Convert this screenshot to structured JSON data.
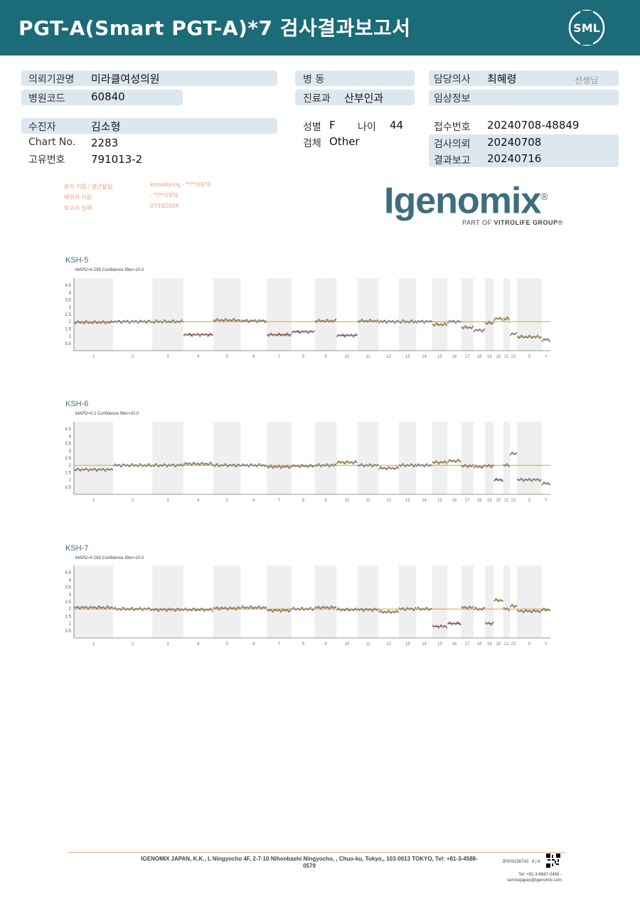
{
  "header": {
    "title": "PGT-A(Smart  PGT-A)*7 검사결과보고서",
    "logo_text": "SML",
    "bg_color": "#1b6b78"
  },
  "info": {
    "institution_label": "의뢰기관명",
    "institution": "미라클여성의원",
    "hospital_code_label": "병원코드",
    "hospital_code": "60840",
    "ward_label": "병  동",
    "ward": "",
    "dept_label": "진료과",
    "dept": "산부인과",
    "doctor_label": "담당의사",
    "doctor": "최혜령",
    "doctor_suffix": "선생님",
    "clinical_label": "임상정보",
    "clinical": "",
    "patient_label": "수진자",
    "patient": "김소형",
    "chart_no_label": "Chart No.",
    "chart_no": "2283",
    "unique_no_label": "고유번호",
    "unique_no": "791013-2",
    "sex_label": "성별",
    "sex": "F",
    "age_label": "나이",
    "age": "44",
    "specimen_label": "검체",
    "specimen": "Other",
    "receipt_label": "접수번호",
    "receipt": "20240708-48849",
    "request_label": "검사의뢰",
    "request": "20240708",
    "report_label": "결과보고",
    "report": "20240716"
  },
  "patient_block": {
    "line1_label": "환자 이름 / 생년월일:",
    "line1_value": "kimsohyung - **/**/1979",
    "line2_label": "배우자 이름:",
    "line2_value": " - **/**/1976",
    "line3_label": "보고서 날짜:",
    "line3_value": "07/16/2024"
  },
  "brand": {
    "name": "Igenomix",
    "reg": "®",
    "sub_prefix": "PART OF ",
    "sub_bold": "VITROLIFE GROUP",
    "sub_suffix": "®"
  },
  "chart_data": [
    {
      "type": "scatter",
      "title": "KSH-5",
      "subtitle": "MAPD=0.199 Confidence filter=10.0",
      "yticks": [
        "4.5",
        "4",
        "3.5",
        "3",
        "2.5",
        "2",
        "1.5",
        "1",
        "0.5"
      ],
      "ylim": [
        0,
        5
      ],
      "reference_line": 2,
      "categories": [
        "1",
        "2",
        "3",
        "4",
        "5",
        "6",
        "7",
        "8",
        "9",
        "10",
        "11",
        "12",
        "13",
        "14",
        "15",
        "16",
        "17",
        "18",
        "19",
        "20",
        "21",
        "22",
        "X",
        "Y"
      ],
      "copy_number_segments": [
        1.95,
        2.0,
        2.0,
        1.1,
        2.1,
        2.05,
        1.1,
        1.3,
        2.05,
        1.05,
        2.05,
        2.0,
        2.0,
        2.0,
        1.8,
        2.0,
        1.6,
        1.4,
        1.9,
        2.2,
        2.2,
        1.15,
        0.95,
        0.75
      ],
      "called_segments": [
        "4",
        "7",
        "8",
        "10"
      ]
    },
    {
      "type": "scatter",
      "title": "KSH-6",
      "subtitle": "MAPD=0.2 Confidence filter=10.0",
      "yticks": [
        "4.5",
        "4",
        "3.5",
        "3",
        "2.5",
        "2",
        "1.5",
        "1",
        "0.5"
      ],
      "ylim": [
        0,
        5
      ],
      "reference_line": 2,
      "categories": [
        "1",
        "2",
        "3",
        "4",
        "5",
        "6",
        "7",
        "8",
        "9",
        "10",
        "11",
        "12",
        "13",
        "14",
        "15",
        "16",
        "17",
        "18",
        "19",
        "20",
        "21",
        "22",
        "X",
        "Y"
      ],
      "copy_number_segments": [
        1.7,
        2.0,
        2.0,
        2.1,
        2.0,
        2.0,
        1.9,
        1.95,
        2.0,
        2.2,
        2.0,
        1.8,
        2.0,
        2.0,
        2.2,
        2.3,
        1.95,
        1.9,
        1.95,
        1.0,
        2.0,
        2.8,
        1.0,
        0.75
      ],
      "called_segments": [
        "20"
      ]
    },
    {
      "type": "scatter",
      "title": "KSH-7",
      "subtitle": "MAPD=0.189 Confidence filter=10.0",
      "yticks": [
        "4.5",
        "4",
        "3.5",
        "3",
        "2.5",
        "2",
        "1.5",
        "1",
        "0.5"
      ],
      "ylim": [
        0,
        5
      ],
      "reference_line": 2,
      "categories": [
        "1",
        "2",
        "3",
        "4",
        "5",
        "6",
        "7",
        "8",
        "9",
        "10",
        "11",
        "12",
        "13",
        "14",
        "15",
        "16",
        "17",
        "18",
        "19",
        "20",
        "21",
        "22",
        "X",
        "Y"
      ],
      "copy_number_segments": [
        2.1,
        2.0,
        1.95,
        1.95,
        2.05,
        2.1,
        1.9,
        2.0,
        2.1,
        1.95,
        1.95,
        1.8,
        2.0,
        2.0,
        0.8,
        1.0,
        2.1,
        2.0,
        1.0,
        2.6,
        2.0,
        2.2,
        1.85,
        1.95
      ],
      "called_segments": [
        "15",
        "16",
        "19"
      ]
    }
  ],
  "footer": {
    "address": "IGENOMIX JAPAN, K.K., L Ningyocho 4F, 2-7-10 Nihonbashi Ningyocho, , Chuo-ku, Tokyo,, 103-0013 TOKYO, Tel: +81-3-4588-0579",
    "code": "JP000156743",
    "page": "6 | 6",
    "contact_line1": "Tel: +81-3-6667-0456 -",
    "contact_line2": "servicejapan@igenomix.com"
  }
}
